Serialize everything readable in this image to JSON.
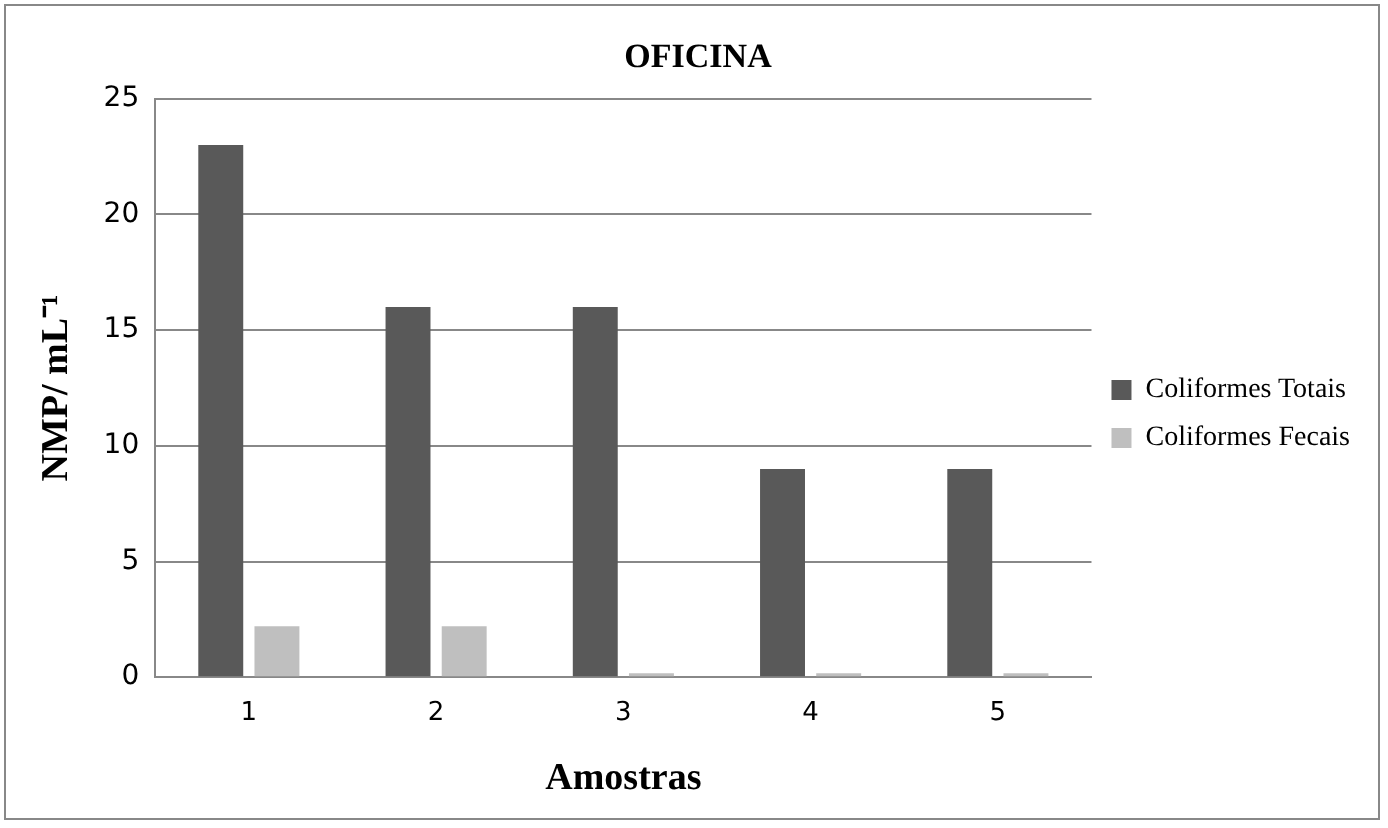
{
  "chart_data": {
    "type": "bar",
    "title": "OFICINA",
    "xlabel": "Amostras",
    "ylabel": "NMP/ mL⁻¹",
    "categories": [
      "1",
      "2",
      "3",
      "4",
      "5"
    ],
    "series": [
      {
        "name": "Coliformes Totais",
        "color": "#595959",
        "values": [
          23,
          16,
          16,
          9,
          9
        ]
      },
      {
        "name": "Coliformes Fecais",
        "color": "#bfbfbf",
        "values": [
          2.2,
          2.2,
          0,
          0,
          0
        ]
      }
    ],
    "ylim": [
      0,
      25
    ],
    "yticks": [
      0,
      5,
      10,
      15,
      20,
      25
    ],
    "grid": "y",
    "legend": "right"
  }
}
